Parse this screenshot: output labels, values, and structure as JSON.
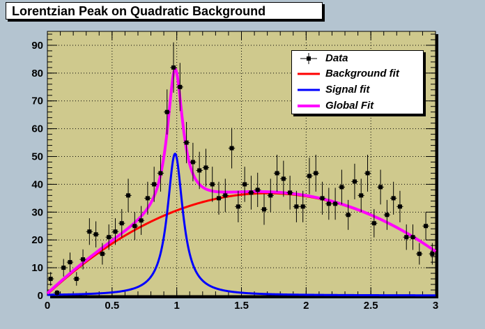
{
  "chart_data": {
    "type": "line",
    "title": "Lorentzian Peak on Quadratic Background",
    "xlabel": "",
    "ylabel": "",
    "xlim": [
      0,
      3
    ],
    "ylim": [
      0,
      95
    ],
    "x_ticks": [
      "0",
      "0.5",
      "1",
      "1.5",
      "2",
      "2.5",
      "3"
    ],
    "y_ticks": [
      "0",
      "10",
      "20",
      "30",
      "40",
      "50",
      "60",
      "70",
      "80",
      "90"
    ],
    "grid": true,
    "legend_position": "top-right",
    "legend": [
      "Data",
      "Background fit",
      "Signal fit",
      "Global Fit"
    ],
    "data_points": {
      "name": "Data",
      "bin_width": 0.05,
      "x": [
        0.025,
        0.075,
        0.125,
        0.175,
        0.225,
        0.275,
        0.325,
        0.375,
        0.425,
        0.475,
        0.525,
        0.575,
        0.625,
        0.675,
        0.725,
        0.775,
        0.825,
        0.875,
        0.925,
        0.975,
        1.025,
        1.075,
        1.125,
        1.175,
        1.225,
        1.275,
        1.325,
        1.375,
        1.425,
        1.475,
        1.525,
        1.575,
        1.625,
        1.675,
        1.725,
        1.775,
        1.825,
        1.875,
        1.925,
        1.975,
        2.025,
        2.075,
        2.125,
        2.175,
        2.225,
        2.275,
        2.325,
        2.375,
        2.425,
        2.475,
        2.525,
        2.575,
        2.625,
        2.675,
        2.725,
        2.775,
        2.825,
        2.875,
        2.925,
        2.975
      ],
      "y": [
        6,
        1,
        10,
        12,
        6,
        13,
        23,
        22,
        15,
        21,
        23,
        26,
        36,
        25,
        27,
        35,
        40,
        44,
        66,
        82,
        75,
        55,
        48,
        45,
        46,
        40,
        35,
        36,
        53,
        32,
        40,
        37,
        38,
        31,
        36,
        44,
        42,
        37,
        32,
        32,
        43,
        44,
        35,
        33,
        33,
        39,
        29,
        41,
        36,
        44,
        26,
        39,
        29,
        35,
        32,
        21,
        21,
        15,
        25,
        15
      ]
    },
    "series": [
      {
        "name": "Background fit",
        "color": "#ff0000",
        "function": "quadratic",
        "params": {
          "a": 0.5,
          "b": 42.6,
          "c": -12.5
        }
      },
      {
        "name": "Signal fit",
        "color": "#0000ff",
        "function": "lorentzian",
        "params": {
          "area": 11.7,
          "width": 0.146,
          "mean": 0.987
        }
      },
      {
        "name": "Global Fit",
        "color": "#ff00ff",
        "function": "quadratic+lorentzian"
      }
    ],
    "colors": {
      "plot_bg": "#cfc98d",
      "page_bg": "#b4c4d0",
      "grid": "#000000"
    }
  }
}
